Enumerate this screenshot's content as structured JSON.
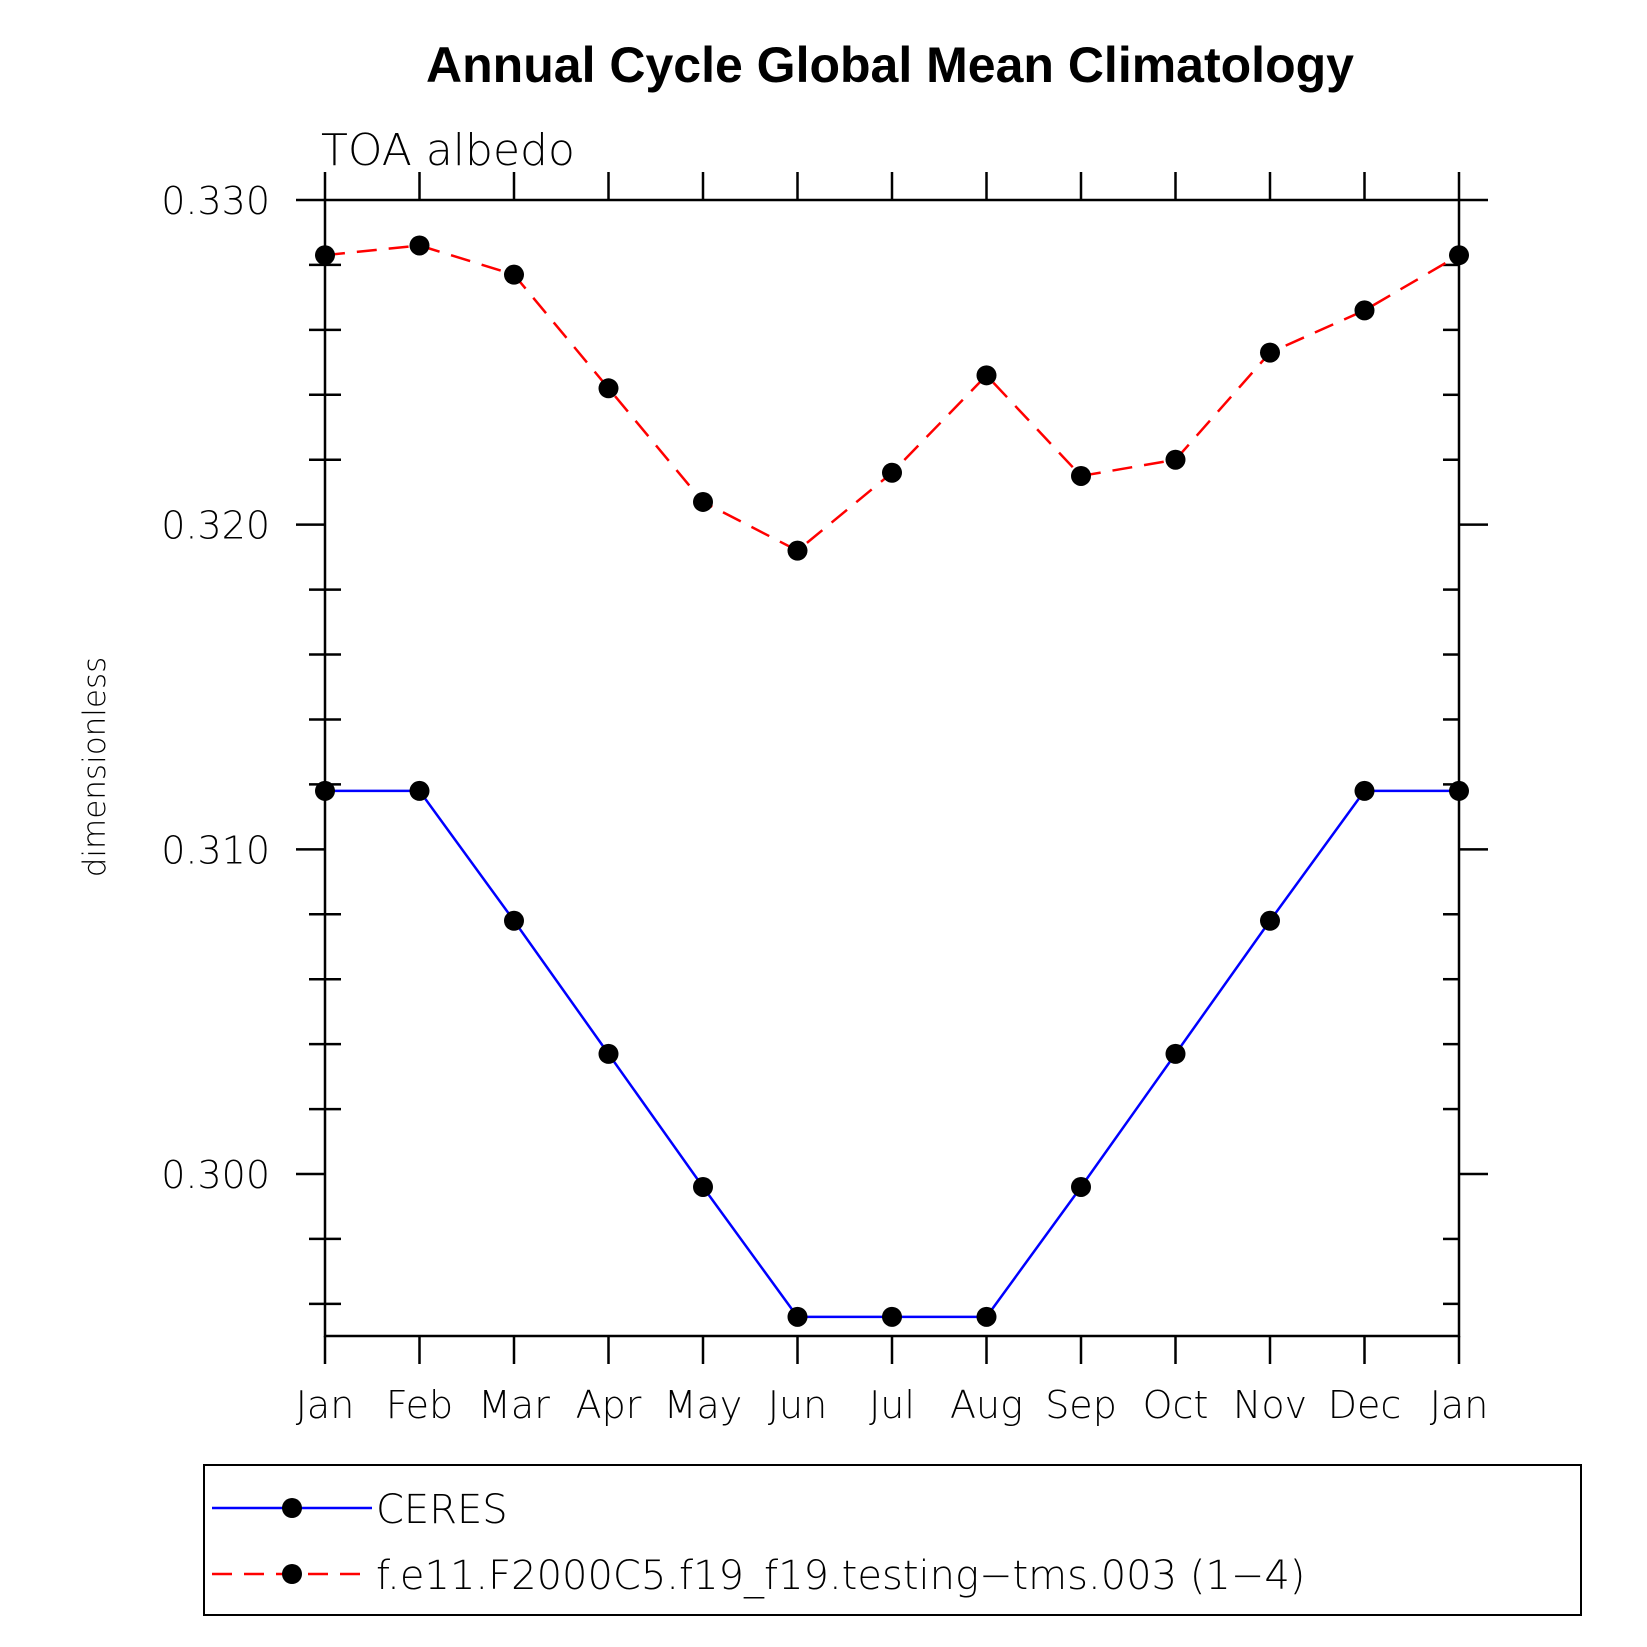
{
  "chart_data": {
    "type": "line",
    "title": "Annual Cycle Global Mean Climatology",
    "subtitle": "TOA albedo",
    "ylabel": "dimensionless",
    "xlabel": "",
    "categories": [
      "Jan",
      "Feb",
      "Mar",
      "Apr",
      "May",
      "Jun",
      "Jul",
      "Aug",
      "Sep",
      "Oct",
      "Nov",
      "Dec",
      "Jan"
    ],
    "ylim": [
      0.295,
      0.33
    ],
    "yticks": [
      "0.330",
      "0.320",
      "0.310",
      "0.300"
    ],
    "ytick_values": [
      0.33,
      0.32,
      0.31,
      0.3
    ],
    "series": [
      {
        "name": "CERES",
        "color": "#0000ff",
        "dash": "solid",
        "values": [
          0.3118,
          0.3118,
          0.3078,
          0.3037,
          0.2996,
          0.2956,
          0.2956,
          0.2956,
          0.2996,
          0.3037,
          0.3078,
          0.3118,
          0.3118
        ]
      },
      {
        "name": "f.e11.F2000C5.f19_f19.testing−tms.003 (1−4)",
        "color": "#ff0000",
        "dash": "dashed",
        "values": [
          0.3283,
          0.3286,
          0.3277,
          0.3242,
          0.3207,
          0.3192,
          0.3216,
          0.3246,
          0.3215,
          0.322,
          0.3253,
          0.3266,
          0.3283
        ]
      }
    ],
    "legend_position": "bottom",
    "grid": false
  }
}
